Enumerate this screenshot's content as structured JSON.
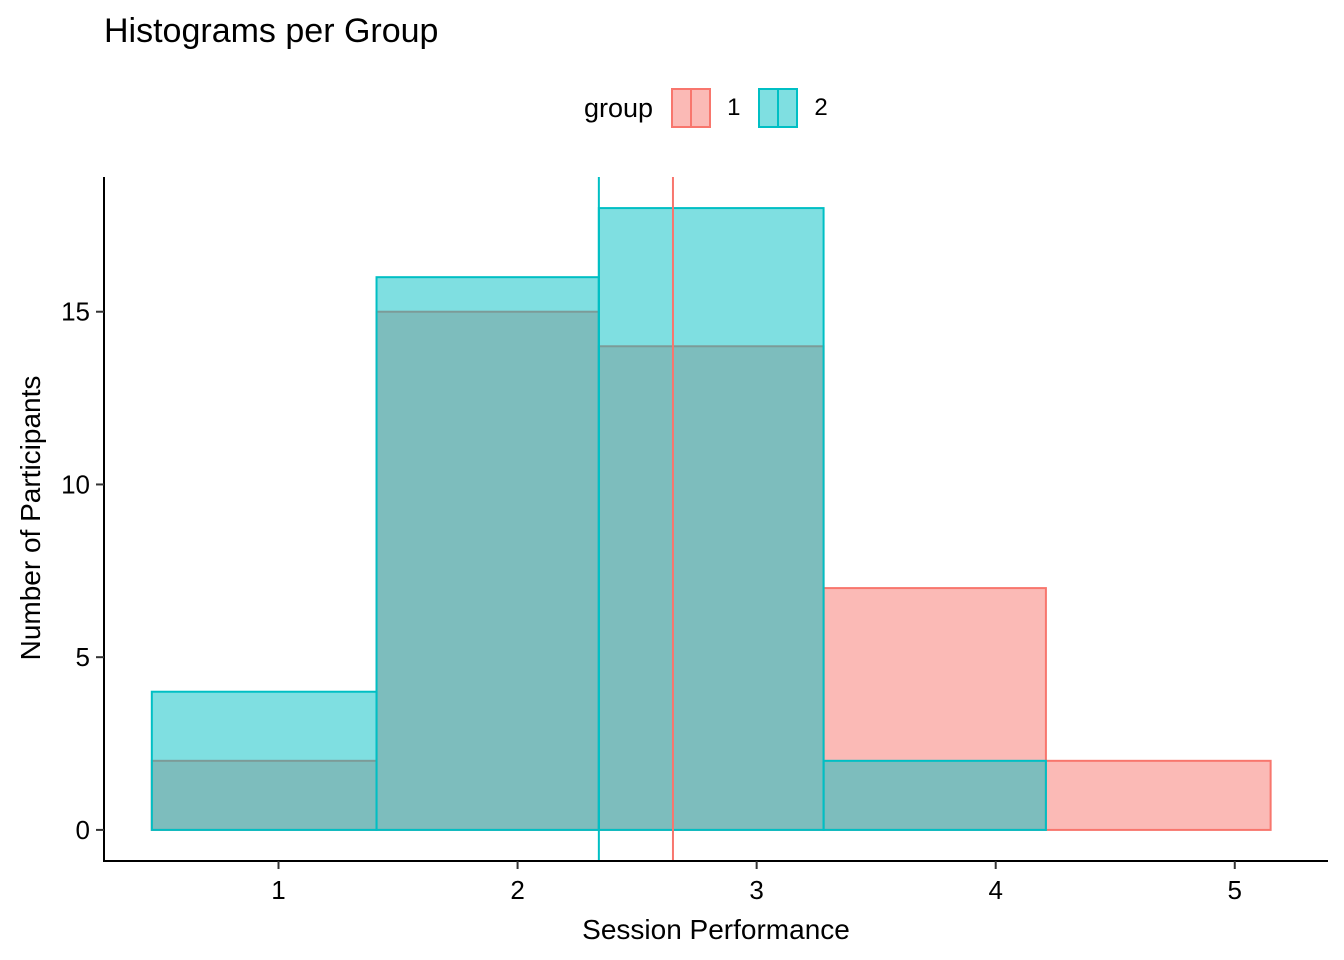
{
  "chart_data": {
    "type": "bar",
    "title": "Histograms per Group",
    "xlabel": "Session Performance",
    "ylabel": "Number of Participants",
    "xlim": [
      0.27,
      5.39
    ],
    "ylim": [
      -0.9,
      18.9
    ],
    "xticks": [
      1,
      2,
      3,
      4,
      5
    ],
    "yticks": [
      0,
      5,
      10,
      15
    ],
    "bin_edges": [
      0.47,
      1.41,
      2.34,
      3.28,
      4.21,
      5.15
    ],
    "legend": {
      "title": "group",
      "position": "top"
    },
    "grid": false,
    "series": [
      {
        "name": "1",
        "counts": [
          2,
          15,
          14,
          7,
          2
        ],
        "mean": 2.65,
        "fill": "#F8766D",
        "stroke": "#F8766D"
      },
      {
        "name": "2",
        "counts": [
          4,
          16,
          18,
          2,
          0
        ],
        "mean": 2.34,
        "fill": "#00BFC4",
        "stroke": "#00BFC4"
      }
    ]
  }
}
